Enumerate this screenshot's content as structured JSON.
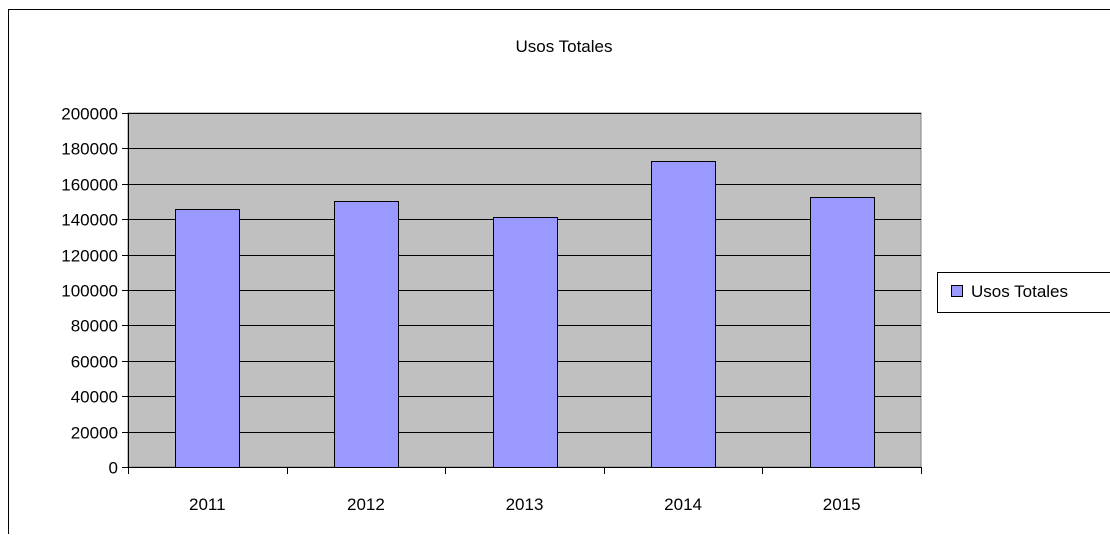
{
  "chart_data": {
    "type": "bar",
    "title": "Usos Totales",
    "categories": [
      "2011",
      "2012",
      "2013",
      "2014",
      "2015"
    ],
    "series": [
      {
        "name": "Usos Totales",
        "values": [
          146000,
          150500,
          141000,
          173000,
          152500
        ]
      }
    ],
    "xlabel": "",
    "ylabel": "",
    "ylim": [
      0,
      200000
    ],
    "y_ticks": [
      "0",
      "20000",
      "40000",
      "60000",
      "80000",
      "100000",
      "120000",
      "140000",
      "160000",
      "180000",
      "200000"
    ],
    "grid": true,
    "legend": "right",
    "colors": {
      "plot_background": "#c0c0c0",
      "bar_fill": "#9999ff",
      "bar_stroke": "#000000",
      "gridline": "#000000",
      "legend_swatch": "#9999ff"
    }
  }
}
